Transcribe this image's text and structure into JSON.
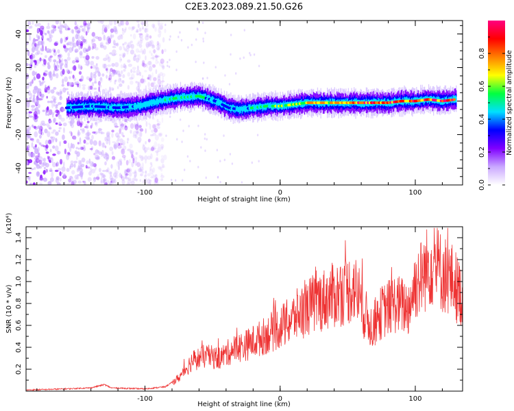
{
  "title": "C2E3.2023.089.21.50.G26",
  "chart_data": [
    {
      "type": "heatmap",
      "xlabel": "Height of straight line (km)",
      "ylabel": "Frequency (Hz)",
      "xlim": [
        -188,
        135
      ],
      "ylim": [
        -50,
        48
      ],
      "xticks": [
        -100,
        0,
        100
      ],
      "yticks": [
        -40,
        -20,
        0,
        20,
        40
      ],
      "colorbar": {
        "label": "Normalized spectral amplitude",
        "range": [
          0.0,
          1.0
        ],
        "ticks": [
          0.0,
          0.2,
          0.4,
          0.6,
          0.8
        ],
        "tick_labels": [
          "0.0",
          "0.2",
          "0.4",
          "0.6",
          "0.8"
        ],
        "colormap": [
          "#ffffff",
          "#c9a8ff",
          "#8000ff",
          "#0000ff",
          "#00e0ff",
          "#00ff40",
          "#ffff00",
          "#ff8000",
          "#ff0000",
          "#ff0080"
        ]
      },
      "ridge": {
        "x": [
          -158,
          -140,
          -120,
          -105,
          -90,
          -75,
          -60,
          -48,
          -38,
          -30,
          -20,
          -10,
          0,
          10,
          20,
          30,
          40,
          50,
          60,
          70,
          80,
          90,
          100,
          110,
          120,
          130
        ],
        "y": [
          -4,
          -3,
          -4,
          -3,
          0,
          2,
          3,
          0,
          -4,
          -5,
          -4,
          -3,
          -3,
          -2,
          -1,
          -1,
          -1,
          -1,
          -1,
          -1,
          -1,
          0,
          0,
          1,
          0,
          1
        ],
        "peak_amplitude": [
          0.35,
          0.4,
          0.4,
          0.45,
          0.5,
          0.5,
          0.55,
          0.45,
          0.4,
          0.45,
          0.5,
          0.55,
          0.6,
          0.65,
          0.7,
          0.75,
          0.8,
          0.85,
          0.88,
          0.9,
          0.9,
          0.92,
          0.95,
          0.95,
          0.92,
          0.9
        ]
      },
      "noise_region_x": [
        -188,
        -85
      ]
    },
    {
      "type": "line",
      "xlabel": "Height of straight line (km)",
      "ylabel": "SNR (10 * v/v)",
      "y_multiplier": "(x10⁴)",
      "xlim": [
        -188,
        135
      ],
      "ylim": [
        0,
        1.5
      ],
      "xticks": [
        -100,
        0,
        100
      ],
      "yticks": [
        0.2,
        0.4,
        0.6,
        0.8,
        1.0,
        1.2,
        1.4
      ],
      "ytick_labels": [
        "0.2",
        "0.4",
        "0.6",
        "0.8",
        "1.0",
        "1.2",
        "1.4"
      ],
      "color": "#ee3333",
      "envelope": {
        "x": [
          -188,
          -160,
          -140,
          -130,
          -125,
          -100,
          -85,
          -75,
          -65,
          -55,
          -45,
          -35,
          -25,
          -15,
          -5,
          5,
          15,
          25,
          35,
          45,
          55,
          62,
          68,
          75,
          85,
          95,
          100,
          105,
          112,
          120,
          128,
          135
        ],
        "y": [
          0.01,
          0.02,
          0.03,
          0.06,
          0.03,
          0.02,
          0.04,
          0.12,
          0.28,
          0.32,
          0.3,
          0.38,
          0.42,
          0.48,
          0.55,
          0.62,
          0.72,
          0.8,
          0.85,
          0.9,
          0.95,
          0.72,
          0.58,
          0.72,
          0.8,
          0.76,
          0.98,
          1.05,
          1.18,
          1.08,
          1.0,
          0.85
        ]
      }
    }
  ]
}
